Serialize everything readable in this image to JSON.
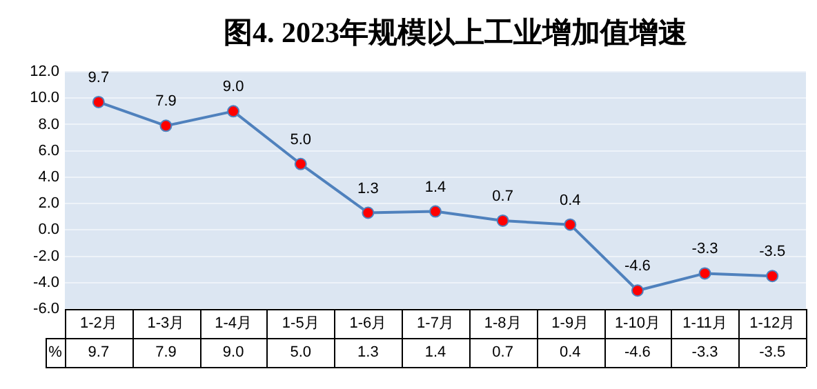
{
  "chart_data": {
    "type": "line",
    "title": "图4. 2023年规模以上工业增加值增速",
    "categories": [
      "1-2月",
      "1-3月",
      "1-4月",
      "1-5月",
      "1-6月",
      "1-7月",
      "1-8月",
      "1-9月",
      "1-10月",
      "1-11月",
      "1-12月"
    ],
    "series": [
      {
        "color": "#4f81bd",
        "values": [
          9.7,
          7.9,
          9.0,
          5.0,
          1.3,
          1.4,
          0.7,
          0.4,
          -4.6,
          -3.3,
          -3.5
        ],
        "value_labels": [
          "9.7",
          "7.9",
          "9.0",
          "5.0",
          "1.3",
          "1.4",
          "0.7",
          "0.4",
          "-4.6",
          "-3.3",
          "-3.5"
        ]
      }
    ],
    "annotations": [
      "%"
    ],
    "ylim": [
      -6,
      12
    ],
    "yticks": [
      {
        "value": -6,
        "label": "-6.0"
      },
      {
        "value": -4,
        "label": "-4.0"
      },
      {
        "value": -2,
        "label": "-2.0"
      },
      {
        "value": 0,
        "label": "0.0"
      },
      {
        "value": 2,
        "label": "2.0"
      },
      {
        "value": 4,
        "label": "4.0"
      },
      {
        "value": 6,
        "label": "6.0"
      },
      {
        "value": 8,
        "label": "8.0"
      },
      {
        "value": 10,
        "label": "10.0"
      },
      {
        "value": 12,
        "label": "12.0"
      }
    ],
    "grid": "y",
    "marker": "circle",
    "line_style": "solid",
    "legend": false
  }
}
